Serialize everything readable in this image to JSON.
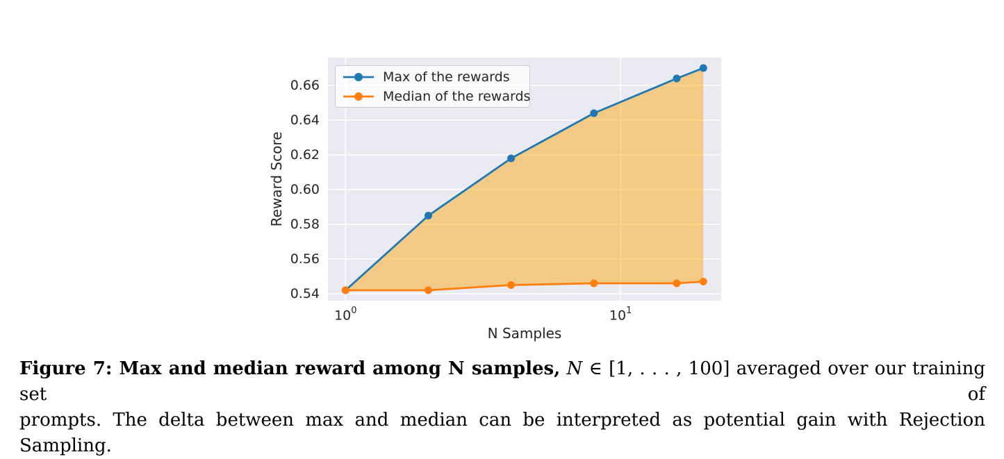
{
  "chart_data": {
    "type": "line",
    "x_scale": "log",
    "x": [
      1,
      2,
      4,
      8,
      16,
      20
    ],
    "series": [
      {
        "name": "Max of the rewards",
        "color": "#1f77b4",
        "values": [
          0.542,
          0.585,
          0.618,
          0.644,
          0.664,
          0.67
        ]
      },
      {
        "name": "Median of the rewards",
        "color": "#ff7f0e",
        "values": [
          0.542,
          0.542,
          0.545,
          0.546,
          0.546,
          0.547
        ]
      }
    ],
    "fill_between": {
      "upper": "Max of the rewards",
      "lower": "Median of the rewards",
      "color": "rgba(255,165,0,0.45)"
    },
    "xlabel": "N Samples",
    "ylabel": "Reward Score",
    "x_ticks": [
      {
        "base": "10",
        "exp": "0",
        "value": 1
      },
      {
        "base": "10",
        "exp": "1",
        "value": 10
      }
    ],
    "y_ticks": [
      {
        "label": "0.54",
        "value": 0.54
      },
      {
        "label": "0.56",
        "value": 0.56
      },
      {
        "label": "0.58",
        "value": 0.58
      },
      {
        "label": "0.60",
        "value": 0.6
      },
      {
        "label": "0.62",
        "value": 0.62
      },
      {
        "label": "0.64",
        "value": 0.64
      },
      {
        "label": "0.66",
        "value": 0.66
      }
    ],
    "x_log_range": [
      -0.064,
      1.366
    ],
    "y_range": [
      0.536,
      0.676
    ],
    "grid": true,
    "legend_position": "upper left",
    "plot_bg": "#eaeaf2",
    "grid_color": "#ffffff",
    "text_color": "#262626"
  },
  "caption": {
    "bold": "Figure 7: Max and median reward among N samples,",
    "math_var": " N",
    "math_rest": " ∈ [1, . . . , 100]",
    "line1_rest": " averaged over our training set of",
    "line2": "prompts. The delta between max and median can be interpreted as potential gain with Rejection Sampling."
  }
}
